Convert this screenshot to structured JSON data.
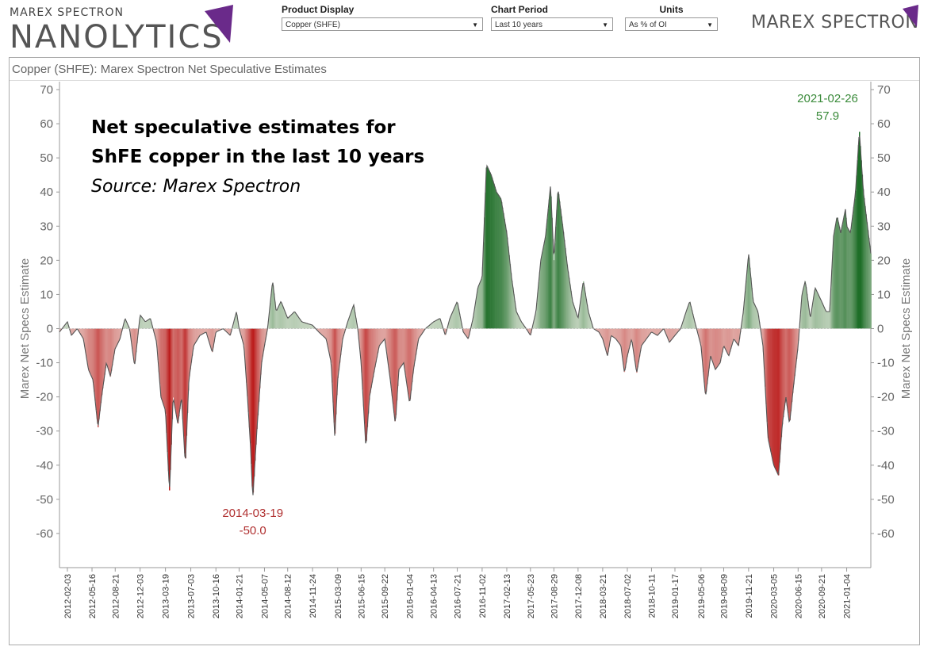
{
  "header": {
    "logo_small": "MAREX SPECTRON",
    "logo_big": "NANOLYTICS",
    "logo_right": "MAREX SPECTRON",
    "accent_color": "#6a2a8a"
  },
  "controls": [
    {
      "label": "Product Display",
      "value": "Copper (SHFE)"
    },
    {
      "label": "Chart Period",
      "value": "Last 10 years"
    },
    {
      "label": "Units",
      "value": "As % of OI"
    }
  ],
  "panel": {
    "title": "Copper (SHFE): Marex Spectron Net Speculative Estimates"
  },
  "annotation": {
    "line1": "Net speculative estimates for",
    "line2": "ShFE copper in the last 10 years",
    "line3": "Source: Marex Spectron"
  },
  "chart_data": {
    "type": "area",
    "title": "Copper (SHFE): Marex Spectron Net Speculative Estimates",
    "ylabel": "Marex Net Specs Estimate",
    "ylabel_right": "Marex Net Specs Estimate",
    "xlabel": "",
    "ylim": [
      -70,
      70
    ],
    "yticks": [
      70,
      60,
      50,
      40,
      30,
      20,
      10,
      0,
      -10,
      -20,
      -30,
      -40,
      -50,
      -60
    ],
    "x_range": [
      "2012-01-01",
      "2021-04-15"
    ],
    "xticks": [
      "2012-02-03",
      "2012-05-16",
      "2012-08-21",
      "2012-12-03",
      "2013-03-19",
      "2013-07-03",
      "2013-10-16",
      "2014-01-21",
      "2014-05-07",
      "2014-08-12",
      "2014-11-24",
      "2015-03-09",
      "2015-06-15",
      "2015-09-22",
      "2016-01-04",
      "2016-04-13",
      "2016-07-21",
      "2016-11-02",
      "2017-02-13",
      "2017-05-23",
      "2017-08-29",
      "2017-12-08",
      "2018-03-21",
      "2018-07-02",
      "2018-10-11",
      "2019-01-17",
      "2019-05-06",
      "2019-08-09",
      "2019-11-21",
      "2020-03-05",
      "2020-06-15",
      "2020-09-21",
      "2021-01-04"
    ],
    "positive_color": "#2e7d32",
    "negative_color": "#c62828",
    "grid": false,
    "series": [
      {
        "points": [
          [
            "2012-01-01",
            -1
          ],
          [
            "2012-02-03",
            2
          ],
          [
            "2012-02-20",
            -2
          ],
          [
            "2012-03-15",
            0
          ],
          [
            "2012-04-10",
            -3
          ],
          [
            "2012-05-01",
            -12
          ],
          [
            "2012-05-20",
            -15
          ],
          [
            "2012-06-10",
            -29
          ],
          [
            "2012-06-25",
            -20
          ],
          [
            "2012-07-15",
            -10
          ],
          [
            "2012-08-01",
            -14
          ],
          [
            "2012-08-20",
            -6
          ],
          [
            "2012-09-10",
            -3
          ],
          [
            "2012-10-01",
            3
          ],
          [
            "2012-10-20",
            0
          ],
          [
            "2012-11-10",
            -11
          ],
          [
            "2012-12-03",
            4
          ],
          [
            "2012-12-25",
            2
          ],
          [
            "2013-01-15",
            3
          ],
          [
            "2013-02-10",
            -4
          ],
          [
            "2013-02-28",
            -20
          ],
          [
            "2013-03-19",
            -24
          ],
          [
            "2013-04-05",
            -48
          ],
          [
            "2013-04-20",
            -20
          ],
          [
            "2013-05-10",
            -28
          ],
          [
            "2013-05-25",
            -20
          ],
          [
            "2013-06-10",
            -40
          ],
          [
            "2013-06-25",
            -15
          ],
          [
            "2013-07-15",
            -5
          ],
          [
            "2013-08-10",
            -2
          ],
          [
            "2013-09-05",
            -1
          ],
          [
            "2013-10-01",
            -7
          ],
          [
            "2013-10-16",
            -1
          ],
          [
            "2013-11-15",
            0
          ],
          [
            "2013-12-15",
            -2
          ],
          [
            "2014-01-10",
            5
          ],
          [
            "2014-01-21",
            0
          ],
          [
            "2014-02-10",
            -5
          ],
          [
            "2014-02-25",
            -20
          ],
          [
            "2014-03-10",
            -35
          ],
          [
            "2014-03-19",
            -50
          ],
          [
            "2014-04-05",
            -30
          ],
          [
            "2014-04-25",
            -10
          ],
          [
            "2014-05-07",
            -5
          ],
          [
            "2014-05-20",
            0
          ],
          [
            "2014-06-10",
            14
          ],
          [
            "2014-06-25",
            5
          ],
          [
            "2014-07-15",
            8
          ],
          [
            "2014-08-12",
            3
          ],
          [
            "2014-09-10",
            5
          ],
          [
            "2014-10-10",
            2
          ],
          [
            "2014-11-24",
            1
          ],
          [
            "2014-12-20",
            -1
          ],
          [
            "2015-01-20",
            -3
          ],
          [
            "2015-02-10",
            -10
          ],
          [
            "2015-02-25",
            -32
          ],
          [
            "2015-03-09",
            -15
          ],
          [
            "2015-03-30",
            -3
          ],
          [
            "2015-04-20",
            2
          ],
          [
            "2015-05-15",
            7
          ],
          [
            "2015-06-01",
            0
          ],
          [
            "2015-06-15",
            -10
          ],
          [
            "2015-07-05",
            -35
          ],
          [
            "2015-07-20",
            -20
          ],
          [
            "2015-08-10",
            -12
          ],
          [
            "2015-08-30",
            -5
          ],
          [
            "2015-09-22",
            -3
          ],
          [
            "2015-10-15",
            -15
          ],
          [
            "2015-11-05",
            -28
          ],
          [
            "2015-11-20",
            -12
          ],
          [
            "2015-12-10",
            -10
          ],
          [
            "2016-01-04",
            -22
          ],
          [
            "2016-01-20",
            -12
          ],
          [
            "2016-02-10",
            -3
          ],
          [
            "2016-03-10",
            0
          ],
          [
            "2016-04-13",
            2
          ],
          [
            "2016-05-10",
            3
          ],
          [
            "2016-06-01",
            -2
          ],
          [
            "2016-06-20",
            3
          ],
          [
            "2016-07-21",
            8
          ],
          [
            "2016-08-15",
            -1
          ],
          [
            "2016-09-05",
            -3
          ],
          [
            "2016-09-25",
            3
          ],
          [
            "2016-10-15",
            12
          ],
          [
            "2016-11-02",
            15
          ],
          [
            "2016-11-20",
            48
          ],
          [
            "2016-12-10",
            45
          ],
          [
            "2017-01-01",
            40
          ],
          [
            "2017-01-20",
            38
          ],
          [
            "2017-02-13",
            28
          ],
          [
            "2017-03-05",
            15
          ],
          [
            "2017-03-25",
            5
          ],
          [
            "2017-04-15",
            2
          ],
          [
            "2017-05-05",
            0
          ],
          [
            "2017-05-23",
            -2
          ],
          [
            "2017-06-15",
            5
          ],
          [
            "2017-07-05",
            20
          ],
          [
            "2017-07-25",
            27
          ],
          [
            "2017-08-15",
            42
          ],
          [
            "2017-08-29",
            20
          ],
          [
            "2017-09-15",
            41
          ],
          [
            "2017-10-05",
            30
          ],
          [
            "2017-10-25",
            18
          ],
          [
            "2017-11-15",
            8
          ],
          [
            "2017-12-08",
            3
          ],
          [
            "2017-12-30",
            14
          ],
          [
            "2018-01-20",
            5
          ],
          [
            "2018-02-10",
            0
          ],
          [
            "2018-03-05",
            -1
          ],
          [
            "2018-03-21",
            -3
          ],
          [
            "2018-04-10",
            -8
          ],
          [
            "2018-04-25",
            -2
          ],
          [
            "2018-05-15",
            -3
          ],
          [
            "2018-06-05",
            -5
          ],
          [
            "2018-06-20",
            -13
          ],
          [
            "2018-07-02",
            -8
          ],
          [
            "2018-07-20",
            -3
          ],
          [
            "2018-08-10",
            -13
          ],
          [
            "2018-08-30",
            -5
          ],
          [
            "2018-09-20",
            -3
          ],
          [
            "2018-10-11",
            -1
          ],
          [
            "2018-11-05",
            -2
          ],
          [
            "2018-12-01",
            0
          ],
          [
            "2018-12-25",
            -4
          ],
          [
            "2019-01-17",
            -2
          ],
          [
            "2019-02-10",
            0
          ],
          [
            "2019-03-05",
            5
          ],
          [
            "2019-03-20",
            8
          ],
          [
            "2019-04-10",
            2
          ],
          [
            "2019-05-06",
            -5
          ],
          [
            "2019-05-25",
            -20
          ],
          [
            "2019-06-15",
            -8
          ],
          [
            "2019-07-05",
            -12
          ],
          [
            "2019-07-25",
            -10
          ],
          [
            "2019-08-09",
            -5
          ],
          [
            "2019-08-30",
            -8
          ],
          [
            "2019-09-20",
            -3
          ],
          [
            "2019-10-10",
            -5
          ],
          [
            "2019-10-30",
            5
          ],
          [
            "2019-11-21",
            22
          ],
          [
            "2019-12-10",
            8
          ],
          [
            "2019-12-30",
            5
          ],
          [
            "2020-01-20",
            -5
          ],
          [
            "2020-02-10",
            -32
          ],
          [
            "2020-03-05",
            -40
          ],
          [
            "2020-03-25",
            -43
          ],
          [
            "2020-04-10",
            -28
          ],
          [
            "2020-04-25",
            -20
          ],
          [
            "2020-05-10",
            -28
          ],
          [
            "2020-05-25",
            -18
          ],
          [
            "2020-06-15",
            -5
          ],
          [
            "2020-07-01",
            10
          ],
          [
            "2020-07-15",
            14
          ],
          [
            "2020-08-05",
            3
          ],
          [
            "2020-08-25",
            12
          ],
          [
            "2020-09-21",
            8
          ],
          [
            "2020-10-10",
            5
          ],
          [
            "2020-10-25",
            5
          ],
          [
            "2020-11-10",
            27
          ],
          [
            "2020-11-25",
            33
          ],
          [
            "2020-12-10",
            28
          ],
          [
            "2020-12-30",
            35
          ],
          [
            "2021-01-04",
            30
          ],
          [
            "2021-01-20",
            28
          ],
          [
            "2021-02-10",
            40
          ],
          [
            "2021-02-26",
            57.9
          ],
          [
            "2021-03-15",
            40
          ],
          [
            "2021-04-01",
            30
          ],
          [
            "2021-04-15",
            22
          ]
        ]
      }
    ],
    "annotations": [
      {
        "date": "2014-03-19",
        "value": "-50.0",
        "color": "#b03030"
      },
      {
        "date": "2021-02-26",
        "value": "57.9",
        "color": "#3a8a3a"
      }
    ]
  }
}
